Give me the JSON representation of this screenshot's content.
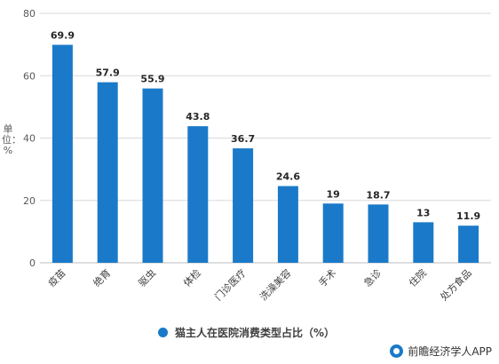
{
  "chart_data": {
    "type": "bar",
    "categories": [
      "疫苗",
      "绝育",
      "驱虫",
      "体检",
      "门诊医疗",
      "洗澡美容",
      "手术",
      "急诊",
      "住院",
      "处方食品"
    ],
    "series": [
      {
        "name": "猫主人在医院消费类型占比（%）",
        "values": [
          69.9,
          57.9,
          55.9,
          43.8,
          36.7,
          24.6,
          19,
          18.7,
          13,
          11.9
        ]
      }
    ],
    "value_labels": [
      "69.9",
      "57.9",
      "55.9",
      "43.8",
      "36.7",
      "24.6",
      "19",
      "18.7",
      "13",
      "11.9"
    ],
    "ylabel": "单位：%",
    "ylim": [
      0,
      80
    ],
    "yticks": [
      0,
      20,
      40,
      60,
      80
    ],
    "grid": true,
    "legend_position": "bottom",
    "bar_color": "#1a7ac9"
  },
  "legend": {
    "label": "猫主人在医院消费类型占比（%）"
  },
  "credit": {
    "text": "前瞻经济学人APP"
  }
}
